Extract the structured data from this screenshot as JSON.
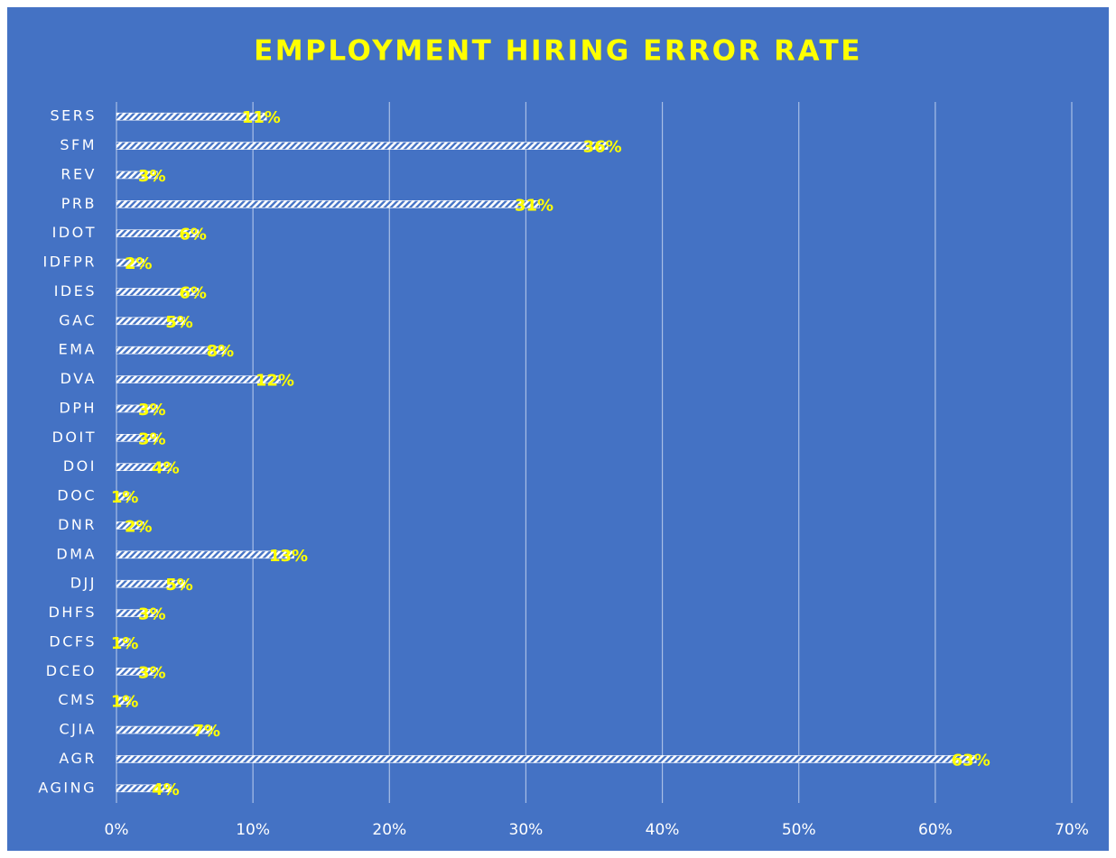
{
  "chart_data": {
    "type": "barh",
    "title": "EMPLOYMENT HIRING ERROR RATE",
    "categories": [
      "SERS",
      "SFM",
      "REV",
      "PRB",
      "IDOT",
      "IDFPR",
      "IDES",
      "GAC",
      "EMA",
      "DVA",
      "DPH",
      "DOIT",
      "DOI",
      "DOC",
      "DNR",
      "DMA",
      "DJJ",
      "DHFS",
      "DCFS",
      "DCEO",
      "CMS",
      "CJIA",
      "AGR",
      "AGING"
    ],
    "values": [
      11,
      36,
      3,
      31,
      6,
      2,
      6,
      5,
      8,
      12,
      3,
      3,
      4,
      1,
      2,
      13,
      5,
      3,
      1,
      3,
      1,
      7,
      63,
      4
    ],
    "value_labels": [
      "11%",
      "36%",
      "3%",
      "31%",
      "6%",
      "2%",
      "6%",
      "5%",
      "8%",
      "12%",
      "3%",
      "3%",
      "4%",
      "1%",
      "2%",
      "13%",
      "5%",
      "3%",
      "1%",
      "3%",
      "1%",
      "7%",
      "63%",
      "4%"
    ],
    "color": "#ffffff",
    "xlim": [
      0,
      70
    ],
    "xticks": [
      {
        "value": 0,
        "label": "0%"
      },
      {
        "value": 10,
        "label": "10%"
      },
      {
        "value": 20,
        "label": "20%"
      },
      {
        "value": 30,
        "label": "30%"
      },
      {
        "value": 40,
        "label": "40%"
      },
      {
        "value": 50,
        "label": "50%"
      },
      {
        "value": 60,
        "label": "60%"
      },
      {
        "value": 70,
        "label": "70%"
      }
    ],
    "grid": true
  }
}
